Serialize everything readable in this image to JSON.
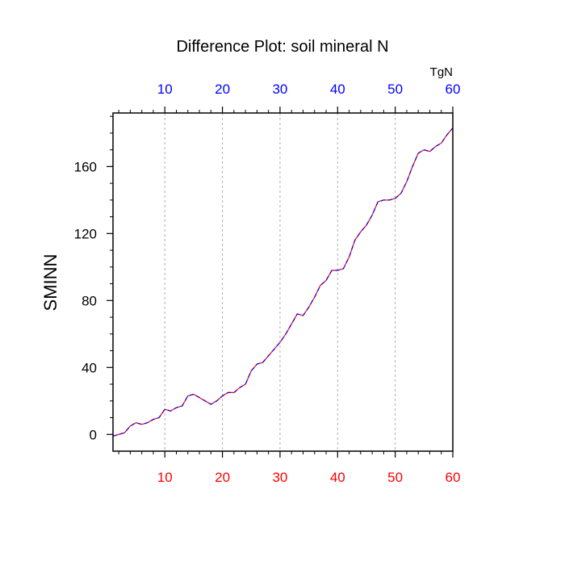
{
  "chart_data": {
    "type": "line",
    "title": "Difference Plot: soil mineral N",
    "ylabel": "SMINN",
    "units_label": "TgN",
    "xlim": [
      1,
      60
    ],
    "ylim": [
      -10,
      192
    ],
    "x_ticks": [
      10,
      20,
      30,
      40,
      50,
      60
    ],
    "y_ticks": [
      0,
      40,
      80,
      120,
      160
    ],
    "y_tick_labels": [
      "0",
      "40",
      "80",
      "120",
      "160"
    ],
    "top_tick_labels": [
      "10",
      "20",
      "30",
      "40",
      "50",
      "60"
    ],
    "bottom_tick_labels": [
      "10",
      "20",
      "30",
      "40",
      "50",
      "60"
    ],
    "grid": "vertical dashed at major x ticks",
    "colors": {
      "top_axis_labels": "#0000ff",
      "bottom_axis_labels": "#ff0000",
      "line_a": "#ff0000",
      "line_b": "#0000ff"
    },
    "series": [
      {
        "values": [
          -1,
          0,
          1,
          5,
          7,
          6,
          7,
          9,
          10,
          15,
          14,
          16,
          17,
          23,
          24,
          22,
          20,
          18,
          20,
          23,
          25,
          25,
          28,
          30,
          38,
          42,
          43,
          47,
          51,
          55,
          60,
          66,
          72,
          71,
          76,
          82,
          89,
          92,
          98,
          98,
          99,
          106,
          116,
          121,
          125,
          131,
          139,
          140,
          140,
          141,
          144,
          151,
          160,
          168,
          170,
          169,
          172,
          174,
          179,
          183
        ]
      },
      {
        "values": [
          -1,
          0,
          1,
          5,
          7,
          6,
          7,
          9,
          10,
          15,
          14,
          16,
          17,
          23,
          24,
          22,
          20,
          18,
          20,
          23,
          25,
          25,
          28,
          30,
          38,
          42,
          43,
          47,
          51,
          55,
          60,
          66,
          72,
          71,
          76,
          82,
          89,
          92,
          98,
          98,
          99,
          106,
          116,
          121,
          125,
          131,
          139,
          140,
          140,
          141,
          144,
          151,
          160,
          168,
          170,
          169,
          172,
          174,
          179,
          183
        ]
      }
    ]
  }
}
